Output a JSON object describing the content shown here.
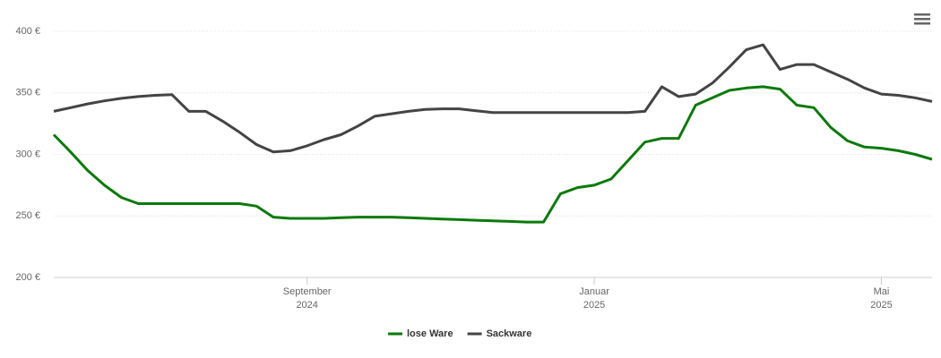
{
  "chart_data": {
    "type": "line",
    "categories": [
      null,
      null,
      null,
      null,
      null,
      null,
      null,
      null,
      null,
      null,
      null,
      null,
      null,
      null,
      null,
      "September 2024",
      null,
      null,
      null,
      null,
      null,
      null,
      null,
      null,
      null,
      null,
      null,
      null,
      null,
      null,
      null,
      null,
      "Januar 2025",
      null,
      null,
      null,
      null,
      null,
      null,
      null,
      null,
      null,
      null,
      null,
      null,
      null,
      null,
      null,
      null,
      "Mai 2025",
      null,
      null,
      null
    ],
    "series": [
      {
        "name": "lose Ware",
        "color": "#0b7a0b",
        "values": [
          316,
          302,
          287,
          275,
          265,
          260,
          260,
          260,
          260,
          260,
          260,
          260,
          258,
          249,
          248,
          248,
          248,
          248.5,
          249,
          249,
          249,
          248.5,
          248,
          247.5,
          247,
          246.5,
          246,
          245.5,
          245,
          245,
          268,
          273,
          275,
          280,
          295,
          310,
          313,
          313,
          340,
          346,
          352,
          354,
          355,
          353,
          340,
          338,
          322,
          311,
          306,
          305,
          303,
          300,
          296
        ]
      },
      {
        "name": "Sackware",
        "color": "#444444",
        "values": [
          335,
          338,
          341,
          343.5,
          345.5,
          347,
          348,
          348.5,
          335,
          335,
          327,
          318,
          308,
          302,
          303,
          307,
          312,
          316,
          323,
          331,
          333,
          335,
          336.5,
          337,
          337,
          335.5,
          334,
          334,
          334,
          334,
          334,
          334,
          334,
          334,
          334,
          335,
          355,
          347,
          349,
          358,
          371,
          385,
          389,
          369,
          373,
          373,
          367,
          361,
          354,
          349,
          348,
          346,
          343
        ]
      }
    ],
    "ylim": [
      200,
      400
    ],
    "yticks": [
      {
        "value": 200,
        "label": "200 €"
      },
      {
        "value": 250,
        "label": "250 €"
      },
      {
        "value": 300,
        "label": "300 €"
      },
      {
        "value": 350,
        "label": "350 €"
      },
      {
        "value": 400,
        "label": "400 €"
      }
    ],
    "grid": true,
    "legend": "bottom"
  }
}
